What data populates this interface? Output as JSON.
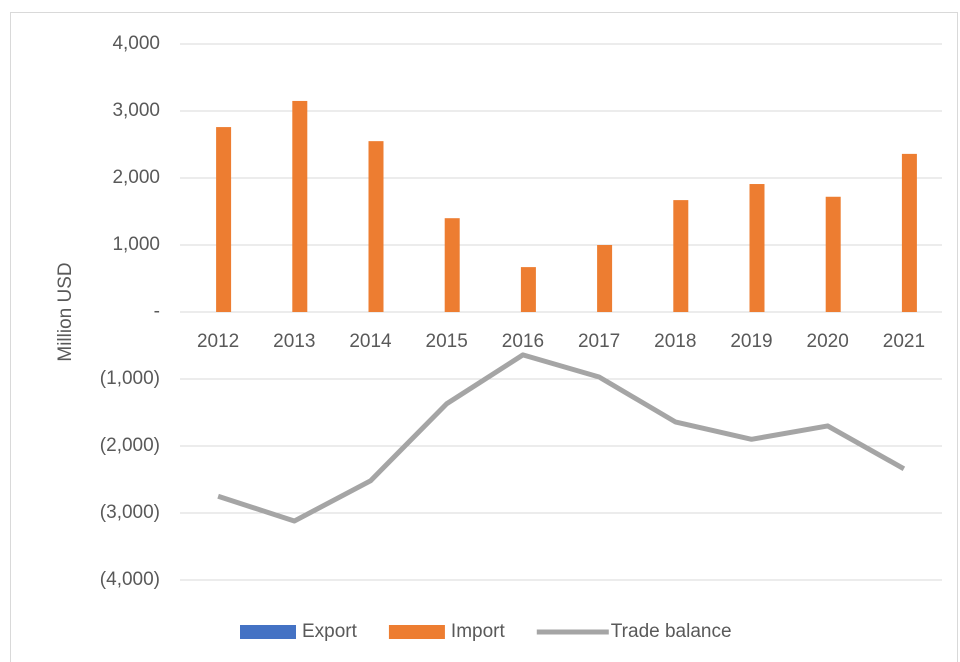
{
  "chart_data": {
    "type": "bar",
    "y_label": "Million USD",
    "categories": [
      "2012",
      "2013",
      "2014",
      "2015",
      "2016",
      "2017",
      "2018",
      "2019",
      "2020",
      "2021"
    ],
    "series": [
      {
        "name": "Export",
        "type": "bar",
        "color": "#4472c4",
        "values": [
          0,
          0,
          0,
          0,
          0,
          0,
          0,
          0,
          0,
          0
        ]
      },
      {
        "name": "Import",
        "type": "bar",
        "color": "#ed7d31",
        "values": [
          2760,
          3150,
          2550,
          1400,
          670,
          1000,
          1670,
          1910,
          1720,
          2360
        ]
      },
      {
        "name": "Trade balance",
        "type": "line",
        "color": "#a5a5a5",
        "values": [
          -2750,
          -3120,
          -2520,
          -1370,
          -640,
          -970,
          -1640,
          -1900,
          -1700,
          -2340
        ]
      }
    ],
    "ylim": [
      -4000,
      4000
    ],
    "yticks": [
      {
        "value": 4000,
        "label": "4,000"
      },
      {
        "value": 3000,
        "label": "3,000"
      },
      {
        "value": 2000,
        "label": "2,000"
      },
      {
        "value": 1000,
        "label": "1,000"
      },
      {
        "value": 0,
        "label": "-"
      },
      {
        "value": -1000,
        "label": "(1,000)"
      },
      {
        "value": -2000,
        "label": "(2,000)"
      },
      {
        "value": -3000,
        "label": "(3,000)"
      },
      {
        "value": -4000,
        "label": "(4,000)"
      }
    ],
    "grid": true,
    "legend": "bottom"
  }
}
